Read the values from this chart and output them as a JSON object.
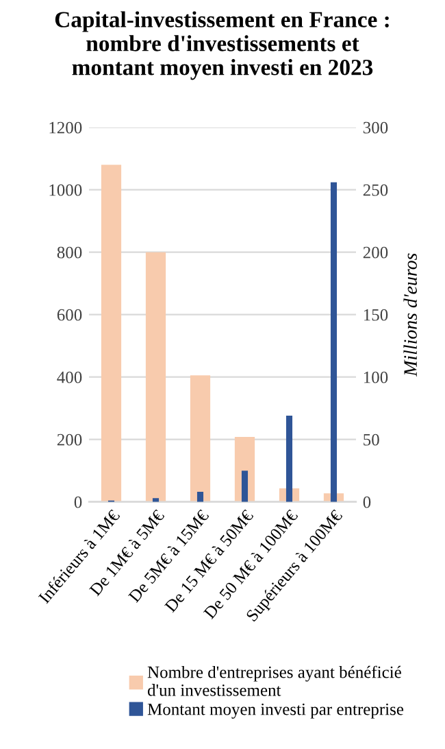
{
  "chart_data": {
    "type": "bar",
    "title": "Capital-investissement en France :\nnombre d'investissements et\nmontant moyen investi en 2023",
    "categories": [
      "Inférieurs à 1M€",
      "De 1M€ à 5M€",
      "De 5M€ à 15M€",
      "De 15 M€ à 50M€",
      "De 50 M€ à 100M€",
      "Supérieurs à 100M€"
    ],
    "series": [
      {
        "name": "Nombre d'entreprises ayant bénéficié\nd'un investissement",
        "color": "#f8cbad",
        "values": [
          1080,
          800,
          405,
          208,
          43,
          27
        ]
      },
      {
        "name": "Montant moyen investi par entreprise",
        "color": "#2f5597",
        "axis": "y2",
        "values": [
          1,
          3,
          8,
          25,
          69,
          256
        ]
      }
    ],
    "ylim": [
      0,
      1200
    ],
    "yticks": [
      0,
      200,
      400,
      600,
      800,
      1000,
      1200
    ],
    "y2lim": [
      0,
      300
    ],
    "y2ticks": [
      0,
      50,
      100,
      150,
      200,
      250,
      300
    ],
    "y2label": "Millions d'euros",
    "grid": "y",
    "legend": "bottom"
  }
}
